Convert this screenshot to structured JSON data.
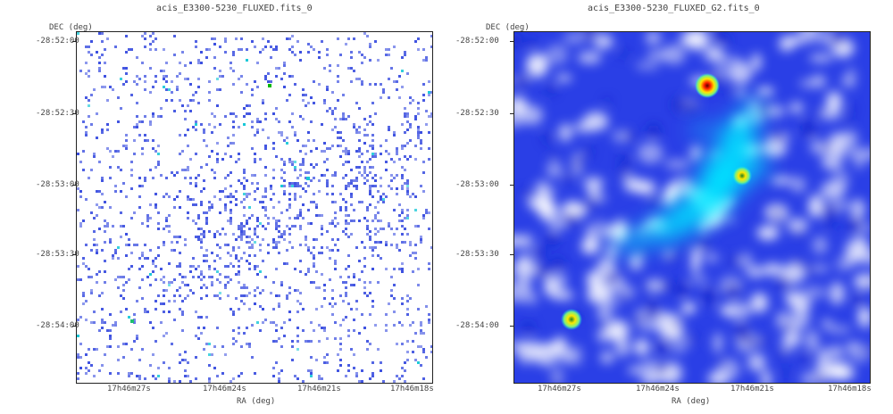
{
  "left_panel": {
    "title": "acis_E3300-5230_FLUXED.fits_0",
    "ylabel": "DEC (deg)",
    "xlabel": "RA (deg)",
    "yticks": [
      "-28:52:00",
      "-28:52:30",
      "-28:53:00",
      "-28:53:30",
      "-28:54:00"
    ],
    "xticks": [
      "17h46m27s",
      "17h46m24s",
      "17h46m21s",
      "17h46m18s"
    ],
    "colors": {
      "background": "#ffffff",
      "pixel": "#3b4fe0",
      "hot": "#18c8d8"
    }
  },
  "right_panel": {
    "title": "acis_E3300-5230_FLUXED_G2.fits_0",
    "ylabel": "DEC (deg)",
    "xlabel": "RA (deg)",
    "yticks": [
      "-28:52:00",
      "-28:52:30",
      "-28:53:00",
      "-28:53:30",
      "-28:54:00"
    ],
    "xticks": [
      "17h46m27s",
      "17h46m24s",
      "17h46m21s",
      "17h46m18s"
    ],
    "colors": {
      "background": "#2a3fe6",
      "low": "#ffffff",
      "mid": "#00e5ff",
      "high": "#ff2000",
      "peak": "#ffe600"
    }
  }
}
